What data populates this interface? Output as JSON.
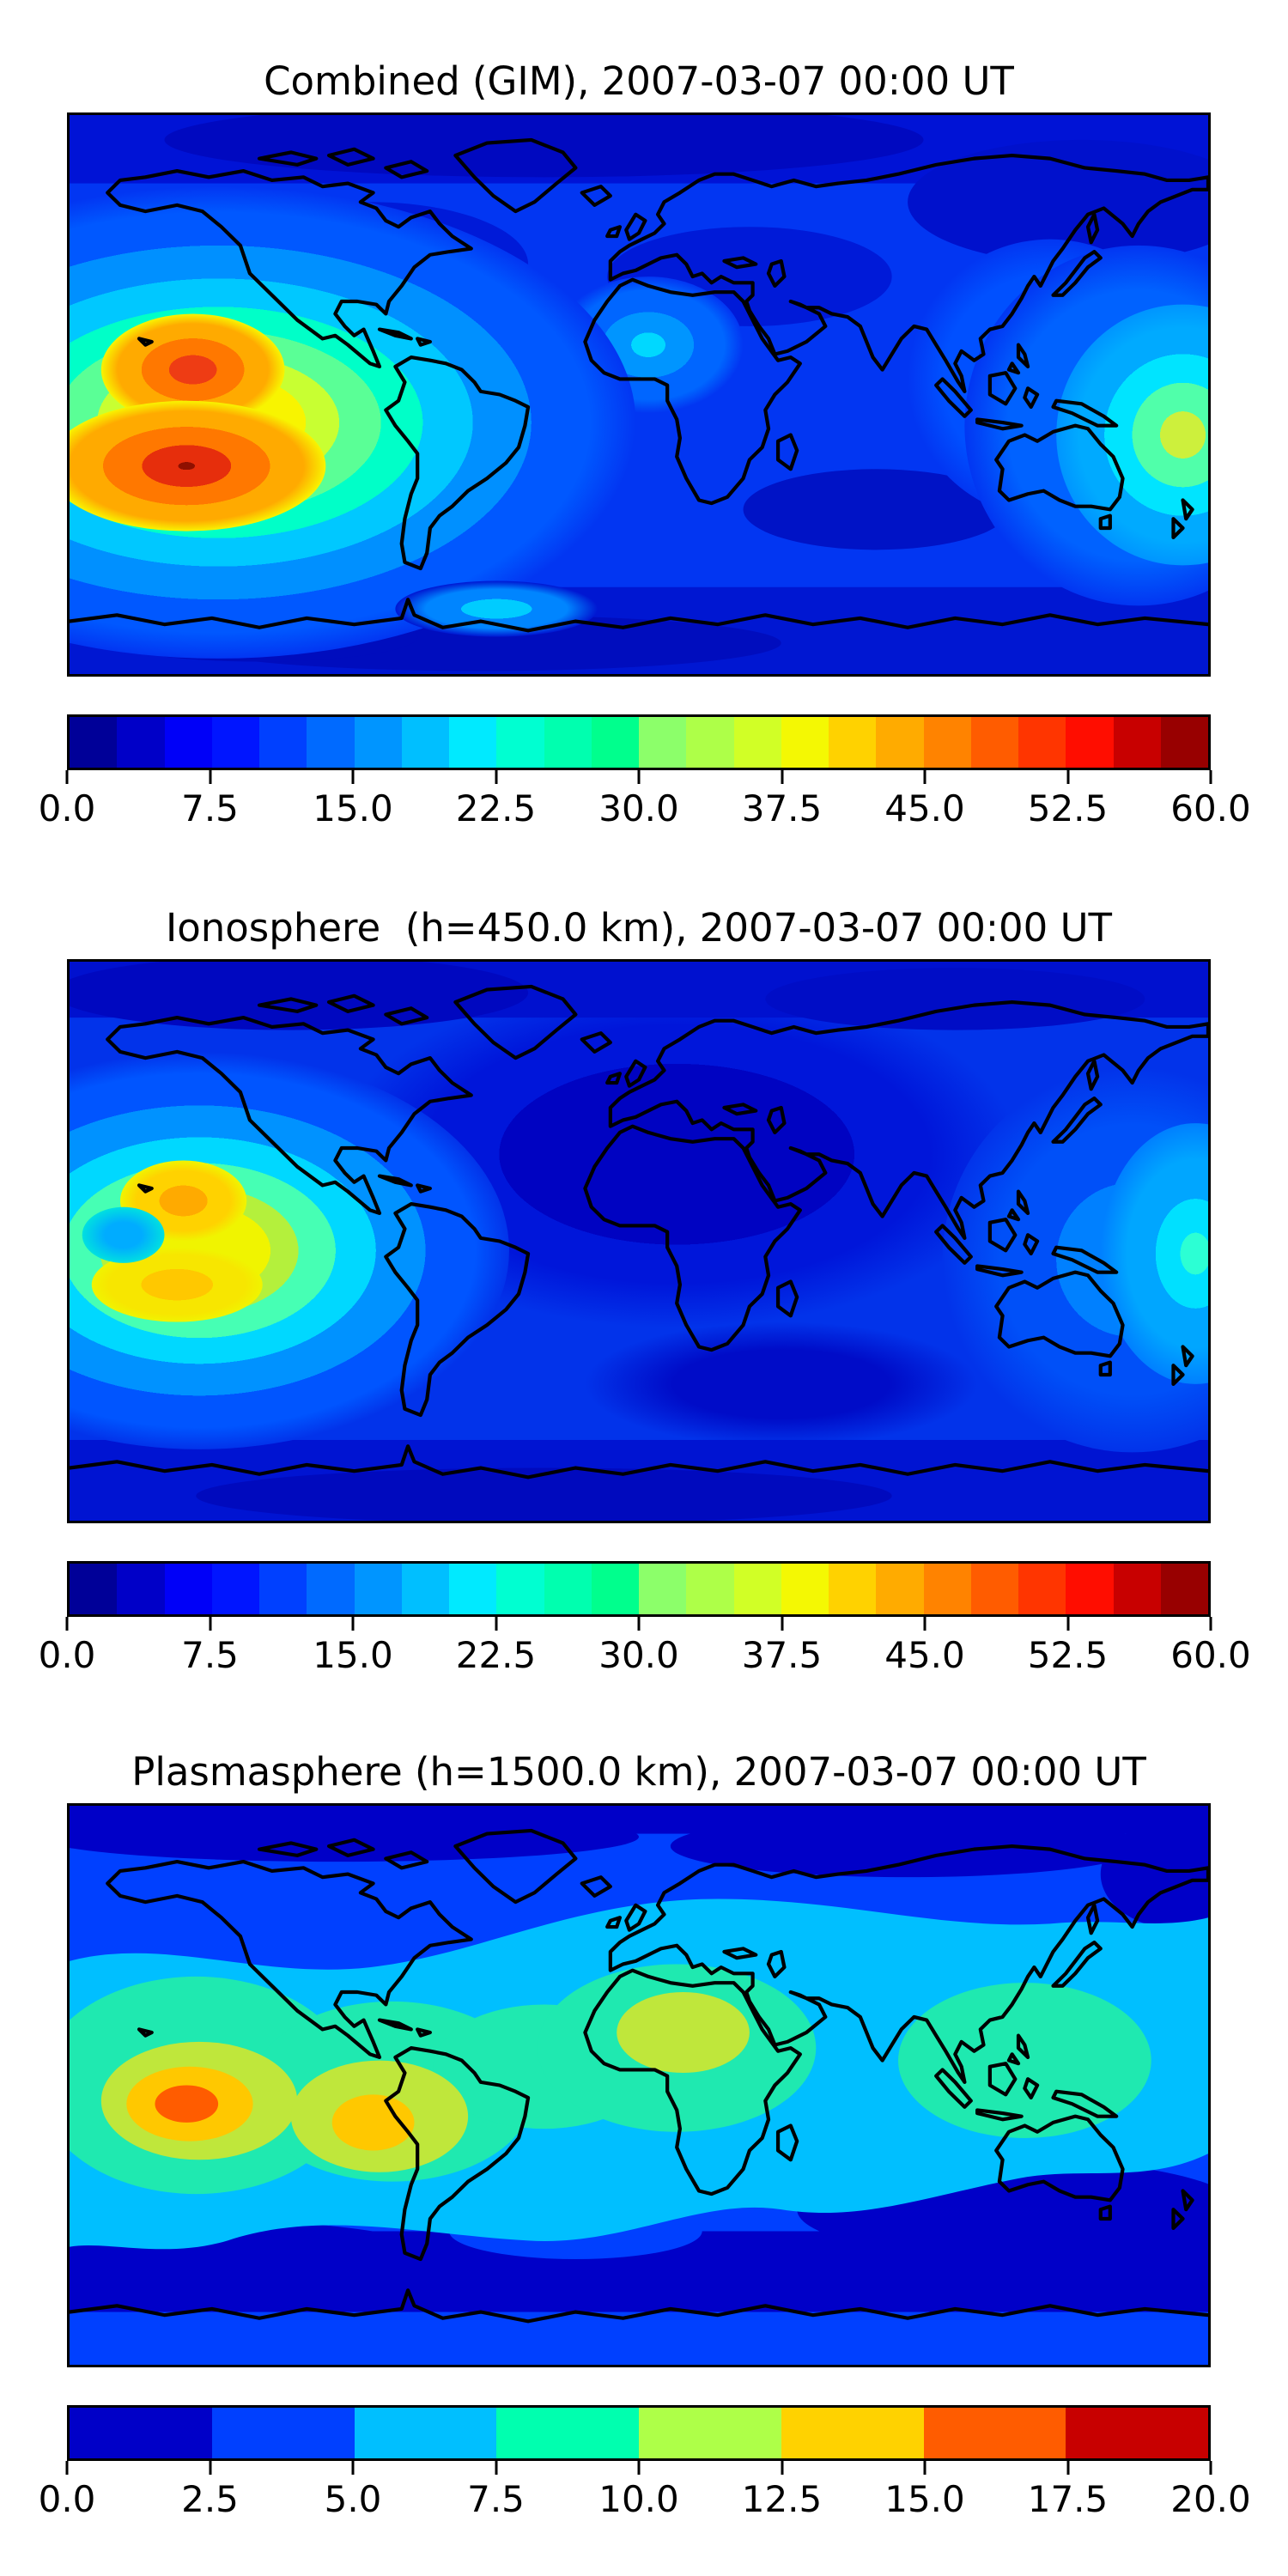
{
  "figure": {
    "kind": "matplotlib-style stacked contour map figure",
    "background": "#ffffff",
    "coastline_color": "#000000"
  },
  "panels": [
    {
      "id": "combined",
      "title": "Combined (GIM), 2007-03-07 00:00 UT",
      "colorbar": {
        "min": 0.0,
        "max": 60.0,
        "segments": 24,
        "ticks": [
          "0.0",
          "7.5",
          "15.0",
          "22.5",
          "30.0",
          "37.5",
          "45.0",
          "52.5",
          "60.0"
        ],
        "colors": [
          "#000098",
          "#0000c8",
          "#0000f8",
          "#0015ff",
          "#0040ff",
          "#006aff",
          "#0095ff",
          "#00bfff",
          "#00eaff",
          "#00ffd1",
          "#00ffaf",
          "#00ff8d",
          "#8cff6a",
          "#aeff48",
          "#d1ff26",
          "#f4f803",
          "#ffd200",
          "#ffab00",
          "#ff8300",
          "#ff5c00",
          "#ff3500",
          "#ff0d00",
          "#c80000",
          "#980000"
        ]
      }
    },
    {
      "id": "ionosphere",
      "title": "Ionosphere  (h=450.0 km), 2007-03-07 00:00 UT",
      "colorbar": {
        "min": 0.0,
        "max": 60.0,
        "segments": 24,
        "ticks": [
          "0.0",
          "7.5",
          "15.0",
          "22.5",
          "30.0",
          "37.5",
          "45.0",
          "52.5",
          "60.0"
        ],
        "colors": [
          "#000098",
          "#0000c8",
          "#0000f8",
          "#0015ff",
          "#0040ff",
          "#006aff",
          "#0095ff",
          "#00bfff",
          "#00eaff",
          "#00ffd1",
          "#00ffaf",
          "#00ff8d",
          "#8cff6a",
          "#aeff48",
          "#d1ff26",
          "#f4f803",
          "#ffd200",
          "#ffab00",
          "#ff8300",
          "#ff5c00",
          "#ff3500",
          "#ff0d00",
          "#c80000",
          "#980000"
        ]
      }
    },
    {
      "id": "plasmasphere",
      "title": "Plasmasphere (h=1500.0 km), 2007-03-07 00:00 UT",
      "colorbar": {
        "min": 0.0,
        "max": 20.0,
        "segments": 8,
        "ticks": [
          "0.0",
          "2.5",
          "5.0",
          "7.5",
          "10.0",
          "12.5",
          "15.0",
          "17.5",
          "20.0"
        ],
        "colors": [
          "#0000c8",
          "#0040ff",
          "#00bfff",
          "#00ffaf",
          "#aeff48",
          "#ffd200",
          "#ff5c00",
          "#c80000"
        ]
      }
    }
  ],
  "chart_data": [
    {
      "type": "heatmap",
      "subtype": "filled contour world map (equirectangular, coastlines overlaid)",
      "title": "Combined (GIM), 2007-03-07 00:00 UT",
      "colormap": "jet (24 discrete levels)",
      "lon_range": [
        -180,
        180
      ],
      "lat_range": [
        -90,
        90
      ],
      "value_range": [
        0.0,
        60.0
      ],
      "level_step": 2.5,
      "colorbar_ticks": [
        0.0,
        7.5,
        15.0,
        22.5,
        30.0,
        37.5,
        45.0,
        52.5,
        60.0
      ],
      "legend_position": "horizontal colorbar below map",
      "maxima": [
        {
          "lon": -146,
          "lat": 3,
          "value": 50,
          "note": "northern equatorial-anomaly crest, east Pacific"
        },
        {
          "lon": -149,
          "lat": -21,
          "value": 58,
          "note": "southern crest, strongest peak (red core)"
        },
        {
          "lon": 165,
          "lat": -14,
          "value": 33,
          "note": "secondary enhancement at right edge, west Pacific"
        }
      ],
      "minima": [
        {
          "region": "high northern latitudes",
          "value": 3
        },
        {
          "region": "southern mid-high latitudes",
          "value": 4
        }
      ],
      "background_value": 10
    },
    {
      "type": "heatmap",
      "subtype": "filled contour world map (equirectangular, coastlines overlaid)",
      "title": "Ionosphere  (h=450.0 km), 2007-03-07 00:00 UT",
      "colormap": "jet (24 discrete levels)",
      "lon_range": [
        -180,
        180
      ],
      "lat_range": [
        -90,
        90
      ],
      "value_range": [
        0.0,
        60.0
      ],
      "level_step": 2.5,
      "colorbar_ticks": [
        0.0,
        7.5,
        15.0,
        22.5,
        30.0,
        37.5,
        45.0,
        52.5,
        60.0
      ],
      "legend_position": "horizontal colorbar below map",
      "maxima": [
        {
          "lon": -146,
          "lat": 13,
          "value": 44,
          "note": "northern crest (orange core)"
        },
        {
          "lon": -147,
          "lat": -14,
          "value": 41,
          "note": "southern crest (gold core)"
        },
        {
          "lon": 178,
          "lat": 0,
          "value": 27,
          "note": "enhancement at right map edge"
        }
      ],
      "minima": [
        {
          "region": "Europe / Africa / south Asia nightside",
          "value": 2
        }
      ],
      "background_value": 8
    },
    {
      "type": "heatmap",
      "subtype": "filled contour world map (equirectangular, coastlines overlaid)",
      "title": "Plasmasphere (h=1500.0 km), 2007-03-07 00:00 UT",
      "colormap": "jet (8 discrete levels)",
      "lon_range": [
        -180,
        180
      ],
      "lat_range": [
        -90,
        90
      ],
      "value_range": [
        0.0,
        20.0
      ],
      "level_step": 2.5,
      "colorbar_ticks": [
        0.0,
        2.5,
        5.0,
        7.5,
        10.0,
        12.5,
        15.0,
        17.5,
        20.0
      ],
      "legend_position": "horizontal colorbar below map",
      "maxima": [
        {
          "lon": -143,
          "lat": -6,
          "value": 17,
          "note": "strongest peak, east Pacific (orange core)"
        },
        {
          "lon": -59,
          "lat": -12,
          "value": 14,
          "note": "South America peak (gold core)"
        },
        {
          "lon": 14,
          "lat": 17,
          "value": 11,
          "note": "Africa peak (green-yellow)"
        },
        {
          "lon": 122,
          "lat": 8,
          "value": 9,
          "note": "west Pacific aquamarine patch"
        }
      ],
      "minima": [
        {
          "region": "high latitude bands north and south",
          "value": 1.5
        }
      ],
      "background_value": 6,
      "notes": "wide cyan equatorial band spanning all longitudes"
    }
  ]
}
